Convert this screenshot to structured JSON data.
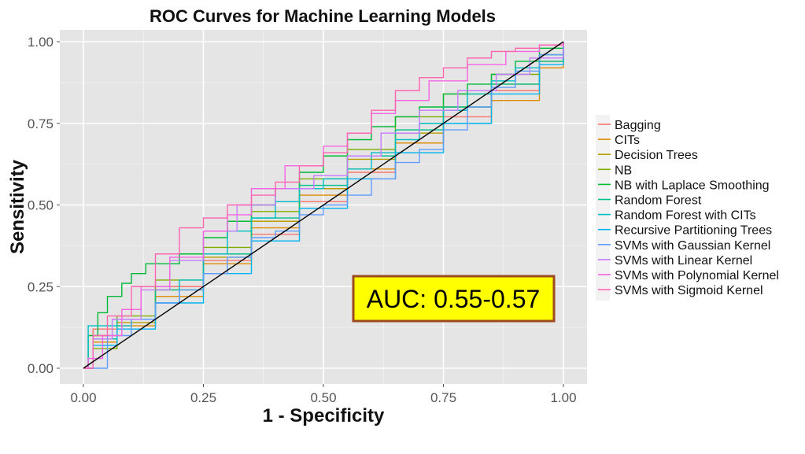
{
  "chart_data": {
    "type": "line",
    "title": "ROC Curves for Machine Learning Models",
    "xlabel": "1 - Specificity",
    "ylabel": "Sensitivity",
    "xlim": [
      0,
      1
    ],
    "ylim": [
      0,
      1
    ],
    "x_ticks": [
      "0.00",
      "0.25",
      "0.50",
      "0.75",
      "1.00"
    ],
    "y_ticks": [
      "0.00",
      "0.25",
      "0.50",
      "0.75",
      "1.00"
    ],
    "grid": true,
    "legend_position": "right",
    "annotation": "AUC: 0.55-0.57",
    "reference_line": {
      "x": [
        0,
        1
      ],
      "y": [
        0,
        1
      ],
      "color": "#000000"
    },
    "series": [
      {
        "name": "Bagging",
        "color": "#F8766D",
        "x": [
          0,
          0.02,
          0.07,
          0.15,
          0.25,
          0.35,
          0.45,
          0.55,
          0.65,
          0.75,
          0.85,
          0.95,
          1
        ],
        "y": [
          0,
          0.12,
          0.15,
          0.25,
          0.33,
          0.41,
          0.51,
          0.6,
          0.69,
          0.77,
          0.85,
          0.95,
          1
        ]
      },
      {
        "name": "CITs",
        "color": "#DE8C00",
        "x": [
          0,
          0.02,
          0.07,
          0.15,
          0.25,
          0.35,
          0.45,
          0.55,
          0.65,
          0.75,
          0.85,
          0.95,
          1
        ],
        "y": [
          0,
          0.08,
          0.13,
          0.22,
          0.32,
          0.43,
          0.53,
          0.61,
          0.69,
          0.75,
          0.82,
          0.92,
          0.97
        ]
      },
      {
        "name": "Decision Trees",
        "color": "#B79F00",
        "x": [
          0,
          0.02,
          0.07,
          0.15,
          0.25,
          0.35,
          0.45,
          0.55,
          0.65,
          0.75,
          0.85,
          0.95,
          1
        ],
        "y": [
          0,
          0.1,
          0.14,
          0.24,
          0.34,
          0.45,
          0.55,
          0.64,
          0.72,
          0.8,
          0.87,
          0.94,
          1
        ]
      },
      {
        "name": "NB",
        "color": "#7CAE00",
        "x": [
          0,
          0.02,
          0.07,
          0.15,
          0.25,
          0.35,
          0.45,
          0.55,
          0.65,
          0.75,
          0.85,
          0.95,
          1
        ],
        "y": [
          0,
          0.06,
          0.16,
          0.27,
          0.37,
          0.48,
          0.58,
          0.67,
          0.77,
          0.84,
          0.9,
          0.96,
          1
        ]
      },
      {
        "name": "NB with Laplace Smoothing",
        "color": "#00BA38",
        "x": [
          0,
          0.01,
          0.03,
          0.05,
          0.08,
          0.1,
          0.13,
          0.15,
          0.2,
          0.25,
          0.3,
          0.35,
          0.4,
          0.45,
          0.5,
          0.55,
          0.6,
          0.65,
          0.7,
          0.75,
          0.8,
          0.85,
          0.9,
          0.95,
          1
        ],
        "y": [
          0,
          0.1,
          0.17,
          0.22,
          0.26,
          0.29,
          0.32,
          0.32,
          0.35,
          0.4,
          0.45,
          0.5,
          0.55,
          0.6,
          0.65,
          0.7,
          0.74,
          0.77,
          0.8,
          0.84,
          0.87,
          0.9,
          0.94,
          0.98,
          1
        ]
      },
      {
        "name": "Random Forest",
        "color": "#00C08B",
        "x": [
          0,
          0.02,
          0.07,
          0.15,
          0.25,
          0.35,
          0.45,
          0.55,
          0.65,
          0.75,
          0.85,
          0.95,
          1
        ],
        "y": [
          0,
          0.09,
          0.15,
          0.24,
          0.35,
          0.46,
          0.56,
          0.65,
          0.73,
          0.8,
          0.87,
          0.94,
          1
        ]
      },
      {
        "name": "Random Forest with CITs",
        "color": "#00BFC4",
        "x": [
          0,
          0.01,
          0.05,
          0.1,
          0.15,
          0.2,
          0.25,
          0.3,
          0.35,
          0.4,
          0.45,
          0.5,
          0.55,
          0.6,
          0.65,
          0.7,
          0.75,
          0.8,
          0.85,
          0.9,
          0.95,
          1
        ],
        "y": [
          0,
          0.13,
          0.13,
          0.15,
          0.2,
          0.27,
          0.35,
          0.42,
          0.46,
          0.51,
          0.55,
          0.58,
          0.61,
          0.66,
          0.7,
          0.75,
          0.79,
          0.84,
          0.88,
          0.92,
          0.96,
          1
        ]
      },
      {
        "name": "Recursive Partitioning Trees",
        "color": "#00B4F0",
        "x": [
          0,
          0.02,
          0.07,
          0.15,
          0.25,
          0.35,
          0.45,
          0.55,
          0.65,
          0.75,
          0.85,
          0.95,
          1
        ],
        "y": [
          0,
          0.07,
          0.12,
          0.2,
          0.29,
          0.39,
          0.49,
          0.58,
          0.66,
          0.75,
          0.84,
          0.93,
          1
        ]
      },
      {
        "name": "SVMs with Gaussian Kernel",
        "color": "#619CFF",
        "x": [
          0,
          0.05,
          0.1,
          0.15,
          0.2,
          0.25,
          0.3,
          0.35,
          0.4,
          0.45,
          0.5,
          0.55,
          0.6,
          0.65,
          0.7,
          0.75,
          0.8,
          0.85,
          0.9,
          0.95,
          1
        ],
        "y": [
          0,
          0.1,
          0.15,
          0.2,
          0.24,
          0.29,
          0.34,
          0.4,
          0.42,
          0.47,
          0.5,
          0.53,
          0.58,
          0.63,
          0.67,
          0.73,
          0.8,
          0.86,
          0.91,
          0.96,
          1
        ]
      },
      {
        "name": "SVMs with Linear Kernel",
        "color": "#C77CFF",
        "x": [
          0,
          0.02,
          0.06,
          0.12,
          0.18,
          0.25,
          0.32,
          0.4,
          0.48,
          0.55,
          0.62,
          0.7,
          0.78,
          0.86,
          0.93,
          1
        ],
        "y": [
          0,
          0.09,
          0.15,
          0.24,
          0.33,
          0.42,
          0.5,
          0.55,
          0.59,
          0.65,
          0.72,
          0.79,
          0.85,
          0.9,
          0.95,
          1
        ]
      },
      {
        "name": "SVMs with Polynomial Kernel",
        "color": "#F564E3",
        "x": [
          0,
          0.01,
          0.04,
          0.08,
          0.12,
          0.18,
          0.25,
          0.3,
          0.35,
          0.42,
          0.5,
          0.55,
          0.6,
          0.65,
          0.72,
          0.8,
          0.88,
          0.95,
          1
        ],
        "y": [
          0,
          0.03,
          0.1,
          0.18,
          0.25,
          0.34,
          0.42,
          0.47,
          0.55,
          0.62,
          0.68,
          0.72,
          0.78,
          0.82,
          0.88,
          0.93,
          0.97,
          0.99,
          1
        ]
      },
      {
        "name": "SVMs with Sigmoid Kernel",
        "color": "#FF64B0",
        "x": [
          0,
          0.02,
          0.05,
          0.1,
          0.15,
          0.2,
          0.25,
          0.3,
          0.35,
          0.4,
          0.45,
          0.5,
          0.55,
          0.6,
          0.65,
          0.7,
          0.75,
          0.8,
          0.85,
          0.9,
          0.95,
          1
        ],
        "y": [
          0,
          0.1,
          0.16,
          0.25,
          0.35,
          0.43,
          0.46,
          0.5,
          0.53,
          0.57,
          0.62,
          0.66,
          0.72,
          0.79,
          0.85,
          0.89,
          0.92,
          0.95,
          0.97,
          0.98,
          0.99,
          1
        ]
      }
    ]
  }
}
